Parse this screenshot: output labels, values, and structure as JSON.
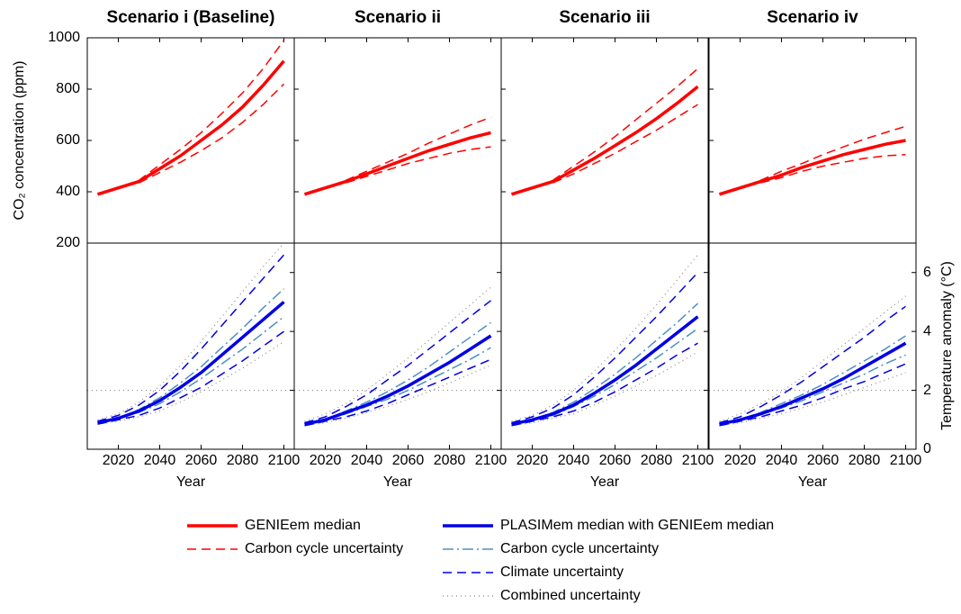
{
  "chart_data": {
    "type": "line",
    "x": [
      2010,
      2020,
      2030,
      2040,
      2050,
      2060,
      2070,
      2080,
      2090,
      2100
    ],
    "xlim": [
      2005,
      2105
    ],
    "xticks": [
      2020,
      2040,
      2060,
      2080,
      2100
    ],
    "xlabel": "Year",
    "ylabel": "CO₂ concentration (ppm)",
    "ylim": [
      200,
      1000
    ],
    "yticks": [
      200,
      400,
      600,
      800,
      1000
    ],
    "y2label": "Temperature anomaly (°C)",
    "y2lim": [
      0,
      7
    ],
    "y2ticks": [
      0,
      2,
      4,
      6
    ],
    "y2_reference": 2,
    "series": [
      {
        "name": "GENIEem median",
        "color": "#ff0000",
        "dash": "solid",
        "width": 3.5
      },
      {
        "name": "Carbon cycle uncertainty",
        "color": "#ff0000",
        "dash": "dashed",
        "width": 1.5
      },
      {
        "name": "PLASIMem median with GENIEem median",
        "color": "#0000e6",
        "dash": "solid",
        "width": 3.5,
        "axis": "y2"
      },
      {
        "name": "Carbon cycle uncertainty",
        "color": "#4f8fc0",
        "dash": "dashdot",
        "width": 1.5,
        "axis": "y2"
      },
      {
        "name": "Climate uncertainty",
        "color": "#0000e6",
        "dash": "dashed",
        "width": 1.5,
        "axis": "y2"
      },
      {
        "name": "Combined uncertainty",
        "color": "#888888",
        "dash": "dotted",
        "width": 1.2,
        "axis": "y2"
      }
    ],
    "panels": [
      {
        "title": "Scenario i (Baseline)",
        "series": [
          {
            "values": [
              390,
              415,
              440,
              490,
              540,
              600,
              660,
              730,
              815,
              910
            ]
          },
          {
            "lower": [
              390,
              415,
              435,
              475,
              515,
              560,
              610,
              670,
              740,
              820
            ],
            "upper": [
              390,
              415,
              445,
              505,
              565,
              630,
              705,
              785,
              880,
              990
            ]
          },
          {
            "values": [
              0.9,
              1.05,
              1.3,
              1.65,
              2.1,
              2.6,
              3.2,
              3.8,
              4.4,
              5.0
            ]
          },
          {
            "lower": [
              0.9,
              1.05,
              1.25,
              1.55,
              1.95,
              2.4,
              2.9,
              3.4,
              3.95,
              4.5
            ],
            "upper": [
              0.9,
              1.05,
              1.35,
              1.75,
              2.25,
              2.8,
              3.45,
              4.1,
              4.8,
              5.45
            ]
          },
          {
            "lower": [
              0.85,
              1.0,
              1.15,
              1.4,
              1.75,
              2.1,
              2.55,
              3.0,
              3.5,
              4.0
            ],
            "upper": [
              0.95,
              1.15,
              1.5,
              2.0,
              2.65,
              3.4,
              4.2,
              5.0,
              5.8,
              6.6
            ]
          },
          {
            "lower": [
              0.85,
              0.95,
              1.1,
              1.3,
              1.6,
              1.95,
              2.35,
              2.75,
              3.2,
              3.65
            ],
            "upper": [
              1.0,
              1.2,
              1.6,
              2.15,
              2.85,
              3.65,
              4.5,
              5.35,
              6.2,
              7.0
            ]
          }
        ]
      },
      {
        "title": "Scenario ii",
        "series": [
          {
            "values": [
              390,
              415,
              440,
              470,
              500,
              530,
              560,
              585,
              610,
              630
            ]
          },
          {
            "lower": [
              390,
              415,
              435,
              460,
              485,
              510,
              530,
              550,
              565,
              575
            ],
            "upper": [
              390,
              415,
              445,
              480,
              515,
              550,
              590,
              625,
              660,
              690
            ]
          },
          {
            "values": [
              0.85,
              1.0,
              1.25,
              1.5,
              1.8,
              2.15,
              2.55,
              2.95,
              3.4,
              3.85
            ]
          },
          {
            "lower": [
              0.85,
              1.0,
              1.2,
              1.45,
              1.7,
              2.0,
              2.35,
              2.7,
              3.05,
              3.45
            ],
            "upper": [
              0.85,
              1.0,
              1.3,
              1.6,
              1.95,
              2.35,
              2.8,
              3.3,
              3.8,
              4.3
            ]
          },
          {
            "lower": [
              0.8,
              0.95,
              1.1,
              1.3,
              1.55,
              1.85,
              2.15,
              2.45,
              2.75,
              3.05
            ],
            "upper": [
              0.9,
              1.1,
              1.45,
              1.85,
              2.35,
              2.85,
              3.4,
              3.95,
              4.5,
              5.05
            ]
          },
          {
            "lower": [
              0.8,
              0.9,
              1.05,
              1.25,
              1.45,
              1.7,
              1.95,
              2.25,
              2.55,
              2.85
            ],
            "upper": [
              0.95,
              1.2,
              1.55,
              2.0,
              2.55,
              3.1,
              3.7,
              4.3,
              4.9,
              5.5
            ]
          }
        ]
      },
      {
        "title": "Scenario iii",
        "series": [
          {
            "values": [
              390,
              415,
              440,
              485,
              530,
              580,
              630,
              685,
              745,
              810
            ]
          },
          {
            "lower": [
              390,
              415,
              435,
              470,
              510,
              550,
              595,
              640,
              690,
              740
            ],
            "upper": [
              390,
              415,
              445,
              500,
              555,
              615,
              680,
              745,
              810,
              880
            ]
          },
          {
            "values": [
              0.85,
              1.0,
              1.2,
              1.5,
              1.9,
              2.35,
              2.85,
              3.4,
              3.95,
              4.5
            ]
          },
          {
            "lower": [
              0.85,
              1.0,
              1.15,
              1.45,
              1.8,
              2.2,
              2.65,
              3.1,
              3.6,
              4.1
            ],
            "upper": [
              0.85,
              1.0,
              1.25,
              1.6,
              2.05,
              2.55,
              3.1,
              3.7,
              4.3,
              4.95
            ]
          },
          {
            "lower": [
              0.8,
              0.95,
              1.1,
              1.3,
              1.6,
              1.95,
              2.35,
              2.75,
              3.2,
              3.6
            ],
            "upper": [
              0.9,
              1.1,
              1.4,
              1.85,
              2.45,
              3.1,
              3.8,
              4.5,
              5.25,
              6.0
            ]
          },
          {
            "lower": [
              0.8,
              0.9,
              1.05,
              1.2,
              1.5,
              1.8,
              2.15,
              2.5,
              2.9,
              3.3
            ],
            "upper": [
              0.95,
              1.15,
              1.5,
              2.0,
              2.65,
              3.35,
              4.1,
              4.9,
              5.75,
              6.6
            ]
          }
        ]
      },
      {
        "title": "Scenario iv",
        "series": [
          {
            "values": [
              390,
              415,
              440,
              465,
              495,
              520,
              545,
              565,
              585,
              600
            ]
          },
          {
            "lower": [
              390,
              415,
              435,
              455,
              480,
              500,
              515,
              530,
              540,
              545
            ],
            "upper": [
              390,
              415,
              445,
              480,
              510,
              545,
              575,
              605,
              630,
              655
            ]
          },
          {
            "values": [
              0.85,
              1.0,
              1.2,
              1.45,
              1.75,
              2.05,
              2.4,
              2.8,
              3.2,
              3.6
            ]
          },
          {
            "lower": [
              0.85,
              1.0,
              1.2,
              1.4,
              1.65,
              1.95,
              2.25,
              2.55,
              2.9,
              3.2
            ],
            "upper": [
              0.85,
              1.0,
              1.25,
              1.55,
              1.85,
              2.2,
              2.6,
              3.0,
              3.4,
              3.85
            ]
          },
          {
            "lower": [
              0.8,
              0.95,
              1.1,
              1.3,
              1.5,
              1.75,
              2.05,
              2.3,
              2.6,
              2.9
            ],
            "upper": [
              0.9,
              1.1,
              1.45,
              1.85,
              2.3,
              2.8,
              3.3,
              3.8,
              4.35,
              4.85
            ]
          },
          {
            "lower": [
              0.8,
              0.9,
              1.05,
              1.2,
              1.4,
              1.6,
              1.85,
              2.1,
              2.35,
              2.6
            ],
            "upper": [
              0.95,
              1.2,
              1.55,
              1.95,
              2.45,
              3.0,
              3.55,
              4.1,
              4.65,
              5.2
            ]
          }
        ]
      }
    ]
  }
}
